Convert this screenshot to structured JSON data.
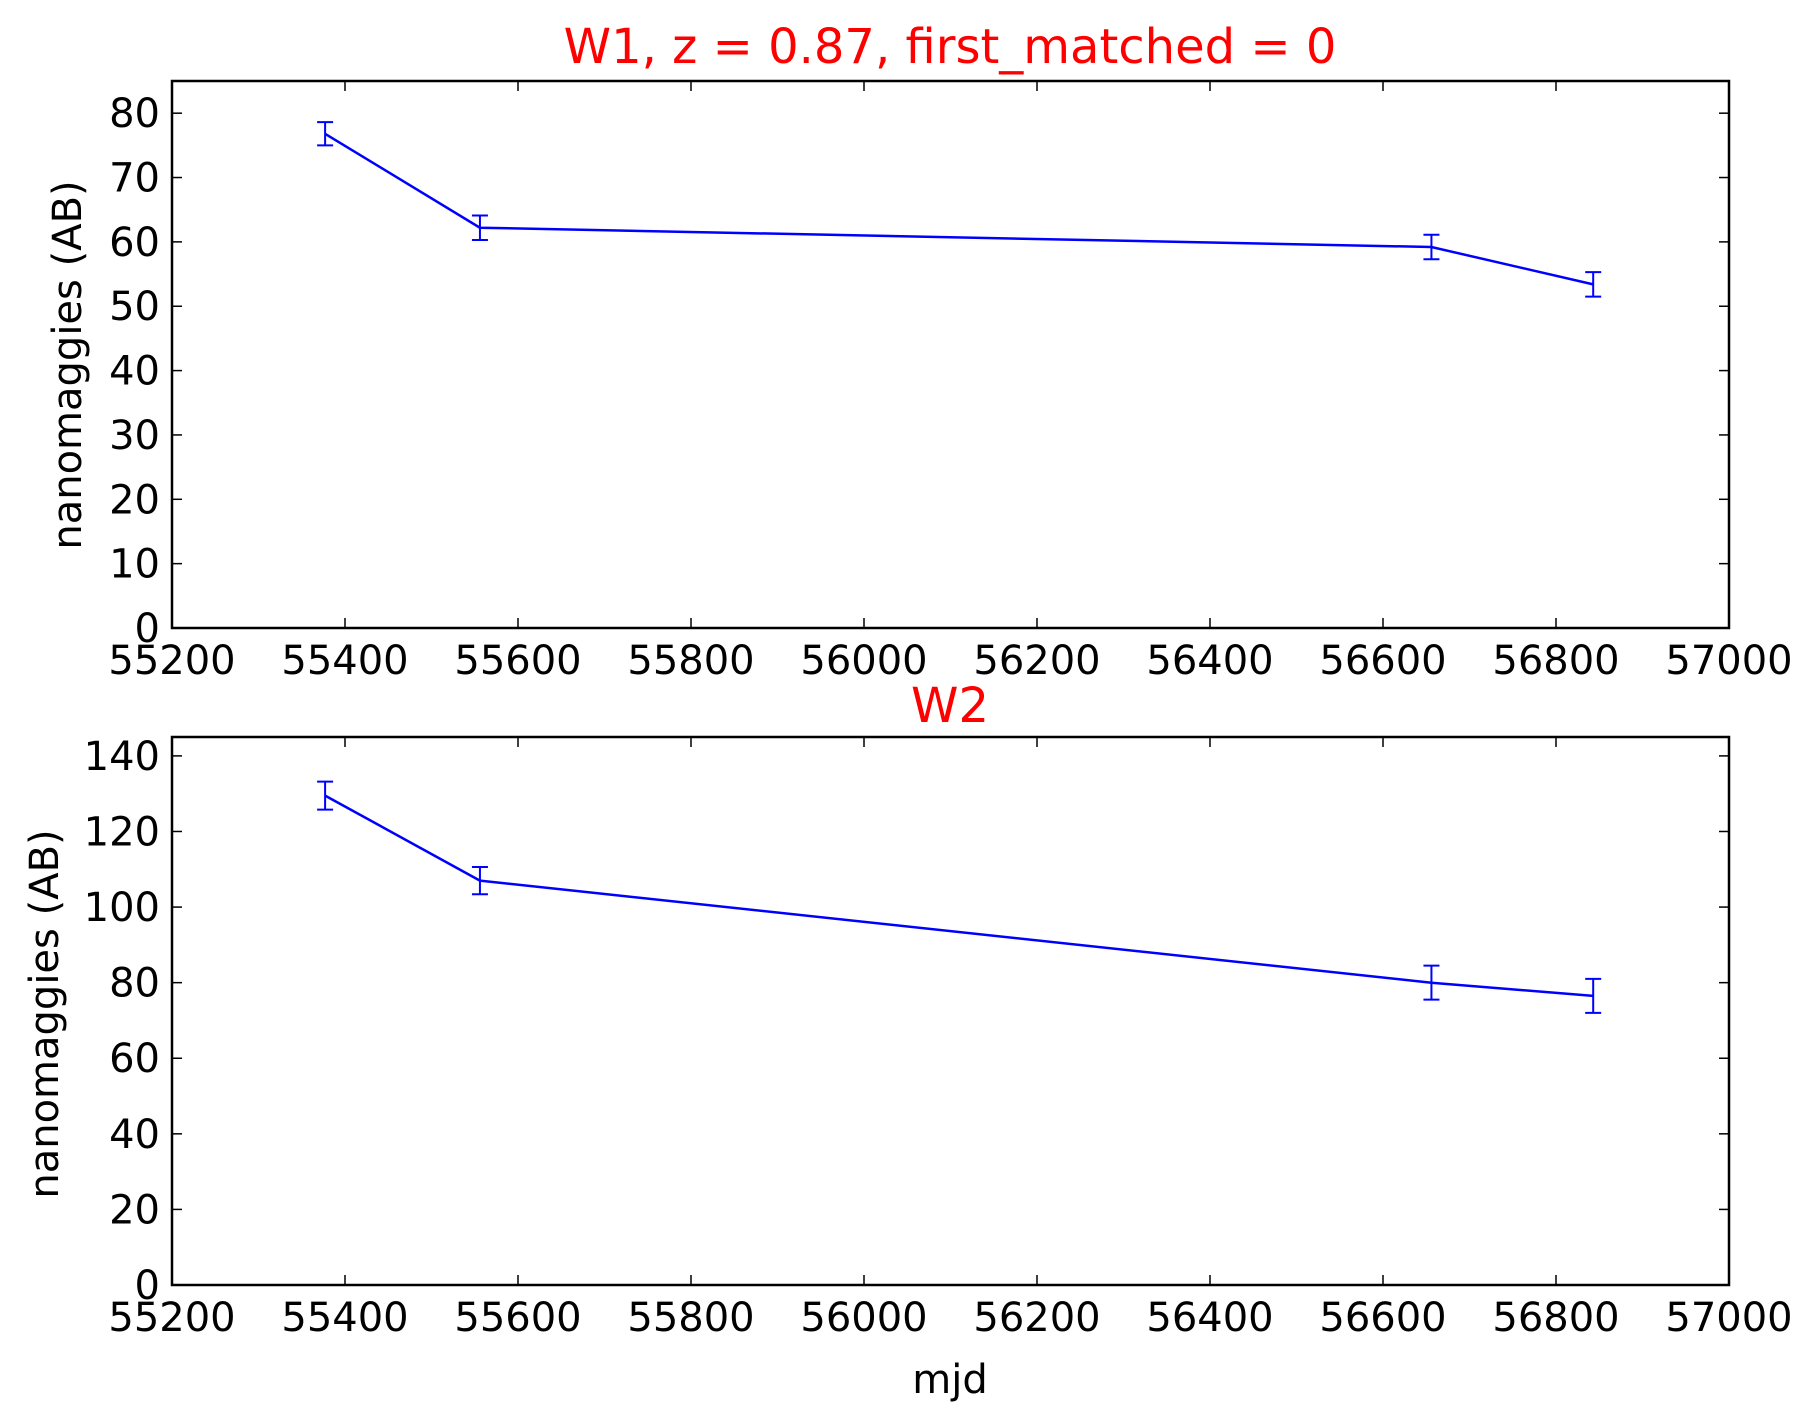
{
  "chart_data": [
    {
      "type": "line",
      "title": "W1, z = 0.87, first_matched = 0",
      "xlabel": "",
      "ylabel": "nanomaggies (AB)",
      "xlim": [
        55200,
        57000
      ],
      "ylim": [
        0,
        85
      ],
      "xticks": [
        55200,
        55400,
        55600,
        55800,
        56000,
        56200,
        56400,
        56600,
        56800,
        57000
      ],
      "yticks": [
        0,
        10,
        20,
        30,
        40,
        50,
        60,
        70,
        80
      ],
      "grid": false,
      "error_bars": true,
      "series": [
        {
          "x": [
            55377,
            55556,
            56656,
            56843
          ],
          "y": [
            76.8,
            62.2,
            59.2,
            53.4
          ],
          "yerr": [
            1.8,
            1.9,
            1.9,
            1.9
          ]
        }
      ]
    },
    {
      "type": "line",
      "title": "W2",
      "xlabel": "mjd",
      "ylabel": "nanomaggies (AB)",
      "xlim": [
        55200,
        57000
      ],
      "ylim": [
        0,
        145
      ],
      "xticks": [
        55200,
        55400,
        55600,
        55800,
        56000,
        56200,
        56400,
        56600,
        56800,
        57000
      ],
      "yticks": [
        0,
        20,
        40,
        60,
        80,
        100,
        120,
        140
      ],
      "grid": false,
      "error_bars": true,
      "series": [
        {
          "x": [
            55377,
            55556,
            56656,
            56843
          ],
          "y": [
            129.5,
            107.0,
            80.0,
            76.5
          ],
          "yerr": [
            3.7,
            3.6,
            4.5,
            4.5
          ]
        }
      ]
    }
  ],
  "colors": {
    "series": "#0000ff",
    "title": "#ff0000",
    "axes": "#000000"
  }
}
